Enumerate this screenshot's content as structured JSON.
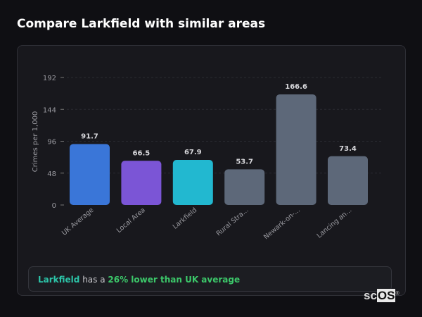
{
  "title": "Compare Larkfield with similar areas",
  "chart_data": {
    "type": "bar",
    "ylabel": "Crimes per 1,000",
    "xlabel": "",
    "ylim": [
      0,
      192
    ],
    "yticks": [
      0,
      48,
      96,
      144,
      192
    ],
    "categories": [
      "UK Average",
      "Local Area",
      "Larkfield",
      "Rural Stra...",
      "Newark-on-...",
      "Lancing an..."
    ],
    "values": [
      91.7,
      66.5,
      67.9,
      53.7,
      166.6,
      73.4
    ],
    "value_labels": [
      "91.7",
      "66.5",
      "67.9",
      "53.7",
      "166.6",
      "73.4"
    ],
    "colors": [
      "#3a76d8",
      "#7b55d6",
      "#22b8d0",
      "#5d6879",
      "#5d6879",
      "#5d6879"
    ],
    "grid": true
  },
  "summary": {
    "area": "Larkfield",
    "middle": " has a ",
    "comparison": "26% lower than UK average"
  },
  "logo": {
    "text1": "sc",
    "text2": "OS",
    "mark": "®"
  }
}
